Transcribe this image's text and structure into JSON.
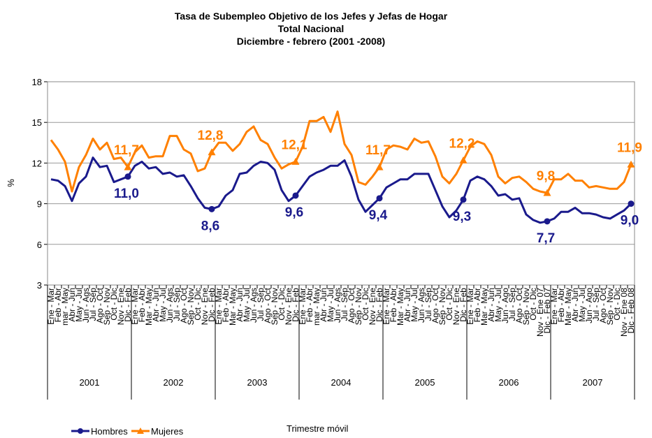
{
  "chart_data": {
    "type": "line",
    "title": [
      "Tasa de Subempleo Objetivo de los Jefes  y Jefas de Hogar",
      "Total Nacional",
      "Diciembre  - febrero (2001 -2008)"
    ],
    "y_label": "%",
    "x_label": "Trimestre móvil",
    "categories": [
      "Ene - Mar",
      "Feb - Abr",
      "mar - May",
      "Abr - Jun",
      "May - Jul",
      "Jun - Ags",
      "Jul - Sep",
      "Ago - Oct",
      "Sep - Nov",
      "Oct - Dic",
      "Nov - Ene",
      "Dic - Feb",
      "Ene - Mar",
      "Feb - Abr",
      "Mar - May",
      "Abr - Jun",
      "May - Jul",
      "Jun - Ags",
      "Jul - Sep",
      "Ago - Oct",
      "Sep - Nov",
      "Oct - Dic",
      "Nov - Ene",
      "Dic - Feb",
      "Ene - Mar",
      "Feb - Abr",
      "Mar - May",
      "Abr - Jun",
      "May - Jul",
      "Jun - Ags",
      "Jul - Sep",
      "Ago - Oct",
      "Sep - Nov",
      "Oct - Dic",
      "Nov - Ene",
      "Dic - Feb",
      "Ene - Mar",
      "Feb - Abr",
      "mar - May",
      "Abr - Jun",
      "May - Jul",
      "Jun - Ags",
      "Jul - Sep",
      "Ago - Oct",
      "Sep - Nov",
      "Oct - Dic",
      "Nov - Ene",
      "Dic - Feb",
      "Ene - Mar",
      "Feb - Abr",
      "Mar - May",
      "Abr - Jun",
      "May - Jul",
      "Jun - Ags",
      "Jul - Sep",
      "Ago - Oct",
      "Sep - Nov",
      "Oct - Dic",
      "Nov - Ene",
      "Dic - Feb",
      "Ene - Mar",
      "Feb - Abr",
      "Mar - May",
      "Abr - Jun",
      "May - Jul",
      "Jun - Ago",
      "Jul - Sep",
      "Ago - Oct",
      "Sep - Nov",
      "Oct - Dic",
      "Nov - Ene 07",
      "Dic - Feb 07",
      "Ene - Mar",
      "Feb - Abr",
      "Mar - May",
      "Abr - Jun",
      "May - Jul",
      "Jun - Ago",
      "Jul - Sep",
      "Ago - Oct",
      "Sep - Nov",
      "Oct - Dic",
      "Nov - Ene 08",
      "Dic - Feb 08"
    ],
    "year_groups": [
      "2001",
      "2002",
      "2003",
      "2004",
      "2005",
      "2006",
      "2007"
    ],
    "ylim": [
      3,
      18
    ],
    "yticks": [
      3,
      6,
      9,
      12,
      15,
      18
    ],
    "grid": true,
    "series": [
      {
        "name": "Hombres",
        "color": "#1a1a8c",
        "marker": "circle",
        "values": [
          10.8,
          10.7,
          10.3,
          9.2,
          10.5,
          11,
          12.4,
          11.7,
          11.8,
          10.6,
          10.8,
          11.0,
          11.8,
          12.1,
          11.6,
          11.7,
          11.2,
          11.3,
          11.0,
          11.1,
          10.3,
          9.4,
          8.7,
          8.6,
          8.8,
          9.6,
          10.0,
          11.2,
          11.3,
          11.8,
          12.1,
          12.0,
          11.5,
          10.0,
          9.2,
          9.6,
          10.3,
          11.0,
          11.3,
          11.5,
          11.8,
          11.8,
          12.2,
          11.0,
          9.3,
          8.4,
          8.9,
          9.4,
          10.2,
          10.5,
          10.8,
          10.8,
          11.2,
          11.2,
          11.2,
          10.0,
          8.8,
          8.0,
          8.5,
          9.3,
          10.7,
          11.0,
          10.8,
          10.3,
          9.6,
          9.7,
          9.3,
          9.4,
          8.2,
          7.8,
          7.6,
          7.7,
          7.9,
          8.4,
          8.4,
          8.7,
          8.3,
          8.3,
          8.2,
          8.0,
          7.9,
          8.2,
          8.5,
          9.0
        ],
        "value_labels": [
          null,
          null,
          null,
          null,
          null,
          null,
          null,
          null,
          null,
          null,
          null,
          "11,0",
          null,
          null,
          null,
          null,
          null,
          null,
          null,
          null,
          null,
          null,
          null,
          "8,6",
          null,
          null,
          null,
          null,
          null,
          null,
          null,
          null,
          null,
          null,
          null,
          "9,6",
          null,
          null,
          null,
          null,
          null,
          null,
          null,
          null,
          null,
          null,
          null,
          "9,4",
          null,
          null,
          null,
          null,
          null,
          null,
          null,
          null,
          null,
          null,
          null,
          "9,3",
          null,
          null,
          null,
          null,
          null,
          null,
          null,
          null,
          null,
          null,
          null,
          "7,7",
          null,
          null,
          null,
          null,
          null,
          null,
          null,
          null,
          null,
          null,
          null,
          "9,0"
        ]
      },
      {
        "name": "Mujeres",
        "color": "#ff8000",
        "marker": "triangle",
        "values": [
          13.7,
          13.0,
          12.1,
          9.9,
          11.7,
          12.6,
          13.8,
          13.0,
          13.5,
          12.3,
          12.4,
          11.7,
          12.8,
          13.3,
          12.4,
          12.5,
          12.5,
          14.0,
          14.0,
          13.0,
          12.7,
          11.4,
          11.6,
          12.8,
          13.5,
          13.5,
          12.9,
          13.4,
          14.3,
          14.7,
          13.7,
          13.4,
          12.4,
          11.6,
          11.9,
          12.1,
          13.2,
          15.1,
          15.1,
          15.4,
          14.3,
          15.8,
          13.4,
          12.6,
          10.6,
          10.4,
          11.0,
          11.7,
          13.0,
          13.3,
          13.2,
          13.0,
          13.8,
          13.5,
          13.6,
          12.5,
          11.0,
          10.5,
          11.2,
          12.2,
          13.2,
          13.6,
          13.4,
          12.6,
          11.0,
          10.5,
          10.9,
          11.0,
          10.6,
          10.1,
          9.9,
          9.8,
          10.8,
          10.8,
          11.2,
          10.7,
          10.7,
          10.2,
          10.3,
          10.2,
          10.1,
          10.1,
          10.6,
          11.9
        ],
        "value_labels": [
          null,
          null,
          null,
          null,
          null,
          null,
          null,
          null,
          null,
          null,
          null,
          "11,7",
          null,
          null,
          null,
          null,
          null,
          null,
          null,
          null,
          null,
          null,
          null,
          "12,8",
          null,
          null,
          null,
          null,
          null,
          null,
          null,
          null,
          null,
          null,
          null,
          "12,1",
          null,
          null,
          null,
          null,
          null,
          null,
          null,
          null,
          null,
          null,
          null,
          "11,7",
          null,
          null,
          null,
          null,
          null,
          null,
          null,
          null,
          null,
          null,
          null,
          "12,2",
          null,
          null,
          null,
          null,
          null,
          null,
          null,
          null,
          null,
          null,
          null,
          "9,8",
          null,
          null,
          null,
          null,
          null,
          null,
          null,
          null,
          null,
          null,
          null,
          "11,9"
        ]
      }
    ]
  }
}
